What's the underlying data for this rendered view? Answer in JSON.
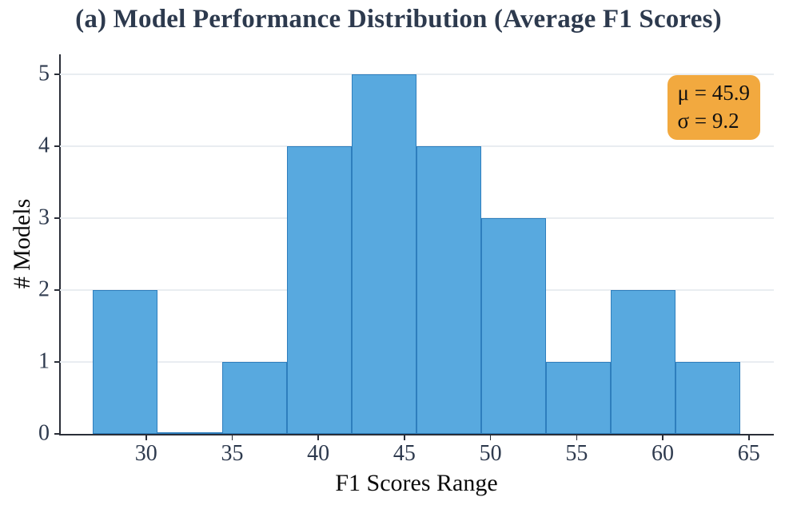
{
  "figure": {
    "title": "(a) Model Performance Distribution (Average F1 Scores)"
  },
  "chart_data": {
    "type": "bar",
    "subtype": "histogram",
    "title": "(a) Model Performance Distribution (Average F1 Scores)",
    "xlabel": "F1 Scores Range",
    "ylabel": "# Models",
    "bin_edges": [
      26.9,
      30.66,
      34.42,
      38.18,
      41.94,
      45.7,
      49.46,
      53.22,
      56.98,
      60.74,
      64.5
    ],
    "counts": [
      2,
      0,
      1,
      4,
      5,
      4,
      3,
      1,
      2,
      1
    ],
    "x_ticks": [
      30,
      35,
      40,
      45,
      50,
      55,
      60,
      65
    ],
    "y_ticks": [
      0,
      1,
      2,
      3,
      4,
      5
    ],
    "xlim": [
      25,
      66.45
    ],
    "ylim": [
      0,
      5.28
    ],
    "grid": "horizontal-only",
    "legend": "none",
    "annotation": {
      "mu_line": "μ = 45.9",
      "sigma_line": "σ = 9.2"
    },
    "colors": {
      "bar_fill": "#58A9DF",
      "bar_edge": "#2E7EBD",
      "grid": "#E9EDF1",
      "spine": "#2A2E38",
      "tick_label": "#2E3A4E",
      "title": "#2D3A4E",
      "axis_label": "#0A0A0A",
      "annotation_bg": "#F2A93F",
      "annotation_text": "#111111"
    }
  }
}
